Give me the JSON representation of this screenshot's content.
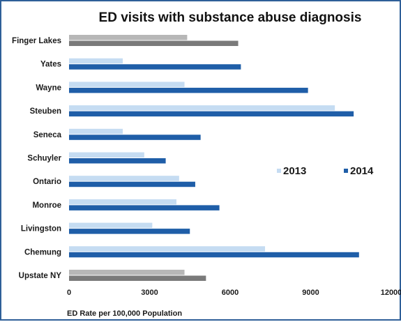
{
  "chart_data": {
    "type": "bar",
    "orientation": "horizontal",
    "title": "ED visits with substance abuse diagnosis",
    "xlabel": "ED Rate per 100,000 Population",
    "ylabel": "",
    "xlim": [
      0,
      12000
    ],
    "x_ticks": [
      "0",
      "3000",
      "6000",
      "9000",
      "12000"
    ],
    "categories": [
      "Finger Lakes",
      "Yates",
      "Wayne",
      "Steuben",
      "Seneca",
      "Schuyler",
      "Ontario",
      "Monroe",
      "Livingston",
      "Chemung",
      "Upstate NY"
    ],
    "series": [
      {
        "name": "2013",
        "values": [
          4400,
          2000,
          4300,
          9900,
          2000,
          2800,
          4100,
          4000,
          3100,
          7300,
          4300
        ]
      },
      {
        "name": "2014",
        "values": [
          6300,
          6400,
          8900,
          10600,
          4900,
          3600,
          4700,
          5600,
          4500,
          10800,
          5100
        ]
      }
    ],
    "highlight_categories": [
      "Finger Lakes",
      "Upstate NY"
    ],
    "colors": {
      "series_2013": "#c5dcf2",
      "series_2014": "#1f5ea8",
      "highlight_2013": "#b7b7b7",
      "highlight_2014": "#7a7a7a",
      "frame": "#2f5f98"
    },
    "grid": false,
    "legend": {
      "position": "right",
      "entries": [
        "2013",
        "2014"
      ]
    }
  }
}
